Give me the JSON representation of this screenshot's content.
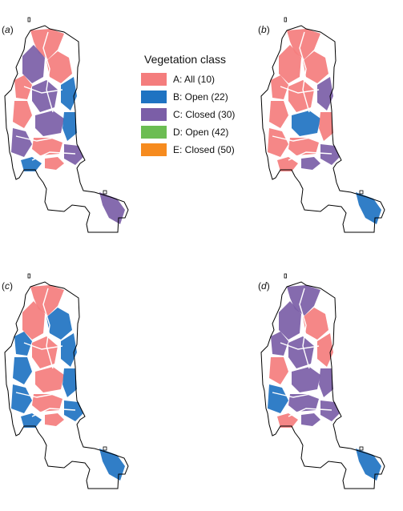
{
  "panels": [
    {
      "id": "a",
      "label": "a",
      "classes": [
        "A",
        "A",
        "C",
        "A",
        "B",
        "C",
        "A",
        "C",
        "B",
        "C",
        "A",
        "C",
        "B",
        "A",
        "C"
      ]
    },
    {
      "id": "b",
      "label": "b",
      "classes": [
        "A",
        "A",
        "A",
        "A",
        "C",
        "A",
        "A",
        "B",
        "A",
        "A",
        "A",
        "C",
        "A",
        "C",
        "B"
      ]
    },
    {
      "id": "c",
      "label": "c",
      "classes": [
        "A",
        "B",
        "A",
        "B",
        "B",
        "A",
        "B",
        "A",
        "B",
        "B",
        "A",
        "B",
        "B",
        "A",
        "B"
      ]
    },
    {
      "id": "d",
      "label": "d",
      "classes": [
        "C",
        "A",
        "C",
        "C",
        "A",
        "C",
        "A",
        "C",
        "C",
        "B",
        "C",
        "C",
        "A",
        "C",
        "B"
      ]
    }
  ],
  "legend": {
    "title": "Vegetation class",
    "items": [
      {
        "label": "A: All (10)",
        "color": "#f47d7d"
      },
      {
        "label": "B: Open (22)",
        "color": "#1f73c2"
      },
      {
        "label": "C: Closed (30)",
        "color": "#7b5ea7"
      },
      {
        "label": "D: Open (42)",
        "color": "#6cbd53"
      },
      {
        "label": "E: Closed (50)",
        "color": "#f68b1f"
      }
    ]
  },
  "colors": {
    "A": "#f47d7d",
    "B": "#1f73c2",
    "C": "#7b5ea7",
    "D": "#6cbd53",
    "E": "#f68b1f"
  }
}
